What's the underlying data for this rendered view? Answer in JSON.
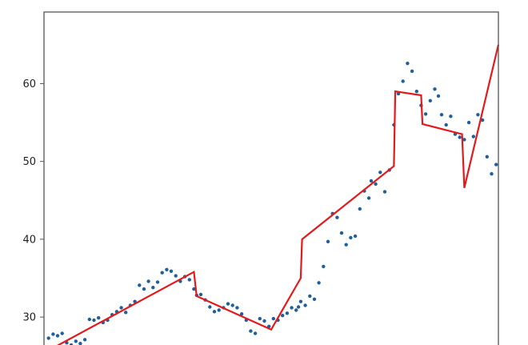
{
  "chart_data": {
    "type": "scatter",
    "title": "",
    "xlabel": "",
    "ylabel": "",
    "xlim": [
      0,
      100
    ],
    "ylim": [
      26,
      69.2
    ],
    "grid": false,
    "y_ticks": [
      30,
      40,
      50,
      60
    ],
    "y_tick_labels": [
      "30",
      "40",
      "50",
      "60"
    ],
    "colors": {
      "points": "#1f5f9a",
      "line": "#e31a1c",
      "frame": "#555555"
    },
    "series": [
      {
        "kind": "scatter",
        "x": [
          1.0,
          2.0,
          3.0,
          4.0,
          5.0,
          6.0,
          7.0,
          8.0,
          9.0,
          10.0,
          11.0,
          12.0,
          13.0,
          14.0,
          15.0,
          16.0,
          17.0,
          18.0,
          19.0,
          20.0,
          21.0,
          22.0,
          23.0,
          24.0,
          25.0,
          26.0,
          27.0,
          28.0,
          29.0,
          30.0,
          31.0,
          32.0,
          33.0,
          33.6,
          34.5,
          35.5,
          36.5,
          37.5,
          38.5,
          39.5,
          40.5,
          41.5,
          42.5,
          43.5,
          44.5,
          45.5,
          46.5,
          47.5,
          48.5,
          49.5,
          50.5,
          51.5,
          52.5,
          53.5,
          54.5,
          55.5,
          56.0,
          56.5,
          57.5,
          58.5,
          59.5,
          60.5,
          61.5,
          62.5,
          63.5,
          64.5,
          65.5,
          66.5,
          67.5,
          68.5,
          69.5,
          70.5,
          71.5,
          72.0,
          73.0,
          74.0,
          75.0,
          76.0,
          77.0,
          78.0,
          79.0,
          80.0,
          81.0,
          82.0,
          83.0,
          84.0,
          85.0,
          86.0,
          86.8,
          87.5,
          88.5,
          89.5,
          90.5,
          91.5,
          92.5,
          93.5,
          94.5,
          95.5,
          96.5,
          97.5,
          98.5,
          99.5
        ],
        "y": [
          27.3,
          27.8,
          27.6,
          27.9,
          26.7,
          26.4,
          26.9,
          26.6,
          27.1,
          29.7,
          29.6,
          29.9,
          29.3,
          29.6,
          30.3,
          30.7,
          31.2,
          30.6,
          31.5,
          32.0,
          34.1,
          33.6,
          34.6,
          33.8,
          34.5,
          35.7,
          36.1,
          35.9,
          35.3,
          34.6,
          35.2,
          34.8,
          33.6,
          32.8,
          32.9,
          32.2,
          31.3,
          30.7,
          30.9,
          31.2,
          31.7,
          31.5,
          31.2,
          30.4,
          29.6,
          28.2,
          27.9,
          29.8,
          29.5,
          28.8,
          29.8,
          29.6,
          30.2,
          30.5,
          31.2,
          30.9,
          31.3,
          32.0,
          31.5,
          32.7,
          32.3,
          34.4,
          36.5,
          39.7,
          43.3,
          42.8,
          40.8,
          39.3,
          40.2,
          40.4,
          43.9,
          46.2,
          45.3,
          47.5,
          47.1,
          48.6,
          46.1,
          48.9,
          54.7,
          58.7,
          60.3,
          62.6,
          61.6,
          59.0,
          57.2,
          56.1,
          57.8,
          59.3,
          58.4,
          56.0,
          54.7,
          55.8,
          53.5,
          53.1,
          52.8,
          55.0,
          53.2,
          56.0,
          55.3,
          50.6,
          48.4,
          49.6
        ]
      },
      {
        "kind": "line",
        "x": [
          0.0,
          33.0,
          33.6,
          50.0,
          56.5,
          56.8,
          77.0,
          77.3,
          83.0,
          83.3,
          92.0,
          92.5,
          100.0
        ],
        "y": [
          25.4,
          35.8,
          32.7,
          28.4,
          35.0,
          40.0,
          49.4,
          59.0,
          58.5,
          54.8,
          53.5,
          46.6,
          65.0
        ]
      }
    ]
  }
}
